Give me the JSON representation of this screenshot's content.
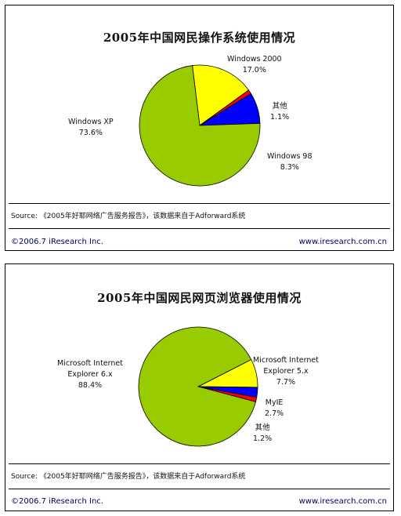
{
  "chart_data": [
    {
      "type": "pie",
      "title": "2005年中国网民操作系统使用情况",
      "slices": [
        {
          "name": "Windows 2000",
          "value": 17.0,
          "label": "17.0%",
          "color": "#ffff00"
        },
        {
          "name": "其他",
          "value": 1.1,
          "label": "1.1%",
          "color": "#ff0000"
        },
        {
          "name": "Windows 98",
          "value": 8.3,
          "label": "8.3%",
          "color": "#0000ff"
        },
        {
          "name": "Windows XP",
          "value": 73.6,
          "label": "73.6%",
          "color": "#99cc00"
        }
      ],
      "source": "Source: 《2005年好耶网络广告服务报告》，该数据来自于Adforward系统",
      "copyright": "©2006.7 iResearch Inc.",
      "website": "www.iresearch.com.cn"
    },
    {
      "type": "pie",
      "title": "2005年中国网民网页浏览器使用情况",
      "slices": [
        {
          "name_lines": [
            "Microsoft Internet",
            "Explorer 5.x"
          ],
          "value": 7.7,
          "label": "7.7%",
          "color": "#ffff00"
        },
        {
          "name_lines": [
            "MyIE"
          ],
          "value": 2.7,
          "label": "2.7%",
          "color": "#0000ff"
        },
        {
          "name_lines": [
            "其他"
          ],
          "value": 1.2,
          "label": "1.2%",
          "color": "#ff0000"
        },
        {
          "name_lines": [
            "Microsoft Internet",
            "Explorer 6.x"
          ],
          "value": 88.4,
          "label": "88.4%",
          "color": "#99cc00"
        }
      ],
      "source": "Source: 《2005年好耶网络广告服务报告》，该数据来自于Adforward系统",
      "copyright": "©2006.7 iResearch Inc.",
      "website": "www.iresearch.com.cn"
    }
  ]
}
